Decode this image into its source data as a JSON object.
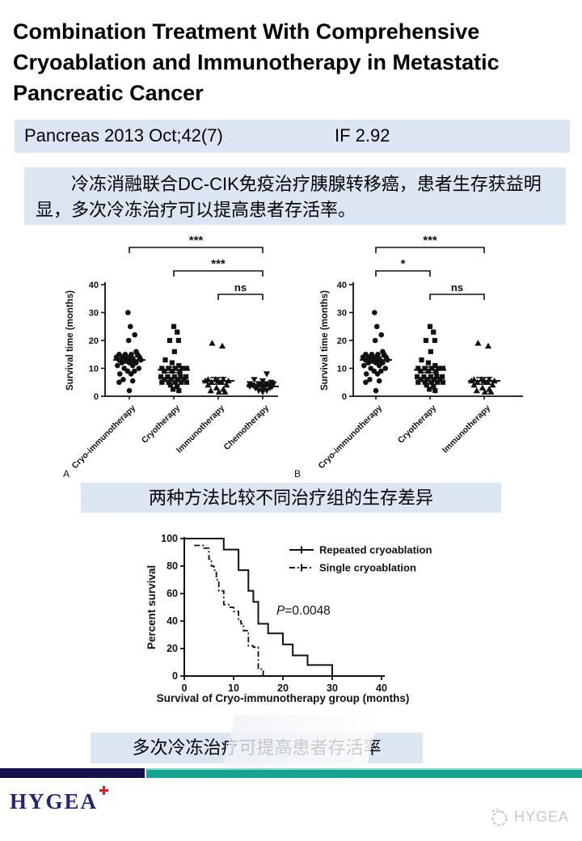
{
  "slide": {
    "title": "Combination Treatment With Comprehensive Cryoablation and Immunotherapy in Metastatic Pancreatic Cancer",
    "journal": "Pancreas 2013 Oct;42(7)",
    "impact_factor": "IF 2.92",
    "summary": "冷冻消融联合DC-CIK免疫治疗胰腺转移癌，患者生存获益明显，多次冷冻治疗可以提高患者存活率。",
    "caption_scatter": "两种方法比较不同治疗组的生存差异",
    "caption_km": "多次冷冻治疗可提高患者存活率",
    "logo_text": "HYGEA",
    "watermark_text": "HYGEA"
  },
  "colors": {
    "box_bg": "#dce6f2",
    "footer_navy": "#14104f",
    "footer_teal": "#17a392",
    "logo_navy": "#23237d",
    "logo_red": "#e01b24",
    "watermark_gray": "#c9c9c9",
    "ink": "#111111"
  },
  "chart_data": [
    {
      "type": "scatter",
      "panel_label": "A",
      "ylabel": "Survival time (months)",
      "ylim": [
        0,
        40
      ],
      "yticks": [
        0,
        10,
        20,
        30,
        40
      ],
      "comparisons": [
        {
          "from": 0,
          "to": 3,
          "label": "***"
        },
        {
          "from": 1,
          "to": 3,
          "label": "***"
        },
        {
          "from": 2,
          "to": 3,
          "label": "ns"
        }
      ],
      "groups": [
        {
          "label": "Cryo-immunotherapy",
          "marker": "circle",
          "mean": 13,
          "sem": 1.1,
          "points": [
            [
              -0.04,
              30
            ],
            [
              0.03,
              25
            ],
            [
              0.16,
              22
            ],
            [
              -0.02,
              20
            ],
            [
              0.2,
              16
            ],
            [
              -0.3,
              15
            ],
            [
              -0.12,
              15
            ],
            [
              0.06,
              15
            ],
            [
              0.24,
              15
            ],
            [
              -0.38,
              14
            ],
            [
              -0.2,
              14
            ],
            [
              0.0,
              14
            ],
            [
              0.3,
              14
            ],
            [
              -0.3,
              13
            ],
            [
              -0.1,
              13
            ],
            [
              0.12,
              13
            ],
            [
              0.34,
              13
            ],
            [
              -0.22,
              12
            ],
            [
              0.0,
              12
            ],
            [
              0.2,
              12
            ],
            [
              -0.35,
              11
            ],
            [
              0.1,
              11
            ],
            [
              -0.15,
              10
            ],
            [
              0.28,
              10
            ],
            [
              -0.05,
              9
            ],
            [
              0.15,
              9
            ],
            [
              -0.28,
              8
            ],
            [
              0.05,
              8
            ],
            [
              -0.18,
              6
            ],
            [
              0.1,
              5.5
            ],
            [
              -0.3,
              5
            ],
            [
              0.0,
              2
            ]
          ]
        },
        {
          "label": "Cryotherapy",
          "marker": "square",
          "mean": 9.5,
          "sem": 1.0,
          "points": [
            [
              0.0,
              25
            ],
            [
              0.1,
              23
            ],
            [
              -0.12,
              20
            ],
            [
              0.14,
              20
            ],
            [
              0.02,
              16
            ],
            [
              -0.25,
              13
            ],
            [
              -0.05,
              12
            ],
            [
              0.15,
              11
            ],
            [
              -0.35,
              10
            ],
            [
              -0.15,
              10
            ],
            [
              0.05,
              10
            ],
            [
              0.25,
              10
            ],
            [
              0.38,
              10
            ],
            [
              -0.28,
              9
            ],
            [
              -0.05,
              9
            ],
            [
              0.18,
              8.5
            ],
            [
              -0.38,
              7
            ],
            [
              -0.18,
              7
            ],
            [
              0.02,
              7
            ],
            [
              0.2,
              7
            ],
            [
              0.36,
              7
            ],
            [
              -0.28,
              6
            ],
            [
              -0.08,
              6
            ],
            [
              0.12,
              6
            ],
            [
              0.3,
              6
            ],
            [
              -0.35,
              5
            ],
            [
              -0.15,
              5
            ],
            [
              0.05,
              5
            ],
            [
              0.22,
              5
            ],
            [
              0.38,
              5
            ],
            [
              -0.1,
              4
            ],
            [
              0.1,
              3.5
            ],
            [
              -0.02,
              2.5
            ],
            [
              0.15,
              2
            ]
          ]
        },
        {
          "label": "Immunotherapy",
          "marker": "triangle-up",
          "mean": 5.5,
          "sem": 1.2,
          "points": [
            [
              -0.18,
              19
            ],
            [
              0.12,
              18
            ],
            [
              -0.3,
              6
            ],
            [
              -0.08,
              6
            ],
            [
              0.15,
              6
            ],
            [
              -0.38,
              5.5
            ],
            [
              0.0,
              5.5
            ],
            [
              0.3,
              5.5
            ],
            [
              -0.2,
              5
            ],
            [
              0.1,
              5
            ],
            [
              -0.3,
              4
            ],
            [
              0.25,
              4
            ],
            [
              -0.05,
              3
            ],
            [
              0.15,
              2.5
            ],
            [
              -0.22,
              2
            ],
            [
              0.02,
              1.5
            ],
            [
              0.2,
              1.5
            ]
          ]
        },
        {
          "label": "Chemotherapy",
          "marker": "triangle-down",
          "mean": 3.5,
          "sem": 0.7,
          "points": [
            [
              0.12,
              8
            ],
            [
              -0.25,
              6
            ],
            [
              0.0,
              5.5
            ],
            [
              0.25,
              5
            ],
            [
              -0.38,
              4.5
            ],
            [
              -0.12,
              4.5
            ],
            [
              0.1,
              4.5
            ],
            [
              0.32,
              4.5
            ],
            [
              -0.3,
              4
            ],
            [
              -0.05,
              4
            ],
            [
              0.18,
              4
            ],
            [
              -0.38,
              3.5
            ],
            [
              -0.15,
              3.5
            ],
            [
              0.05,
              3.5
            ],
            [
              0.28,
              3.5
            ],
            [
              -0.22,
              3
            ],
            [
              0.0,
              3
            ],
            [
              0.22,
              3
            ],
            [
              -0.12,
              2
            ],
            [
              0.12,
              2
            ],
            [
              0.0,
              1.5
            ]
          ]
        }
      ]
    },
    {
      "type": "scatter",
      "panel_label": "B",
      "ylabel": "Survival time (months)",
      "ylim": [
        0,
        40
      ],
      "yticks": [
        0,
        10,
        20,
        30,
        40
      ],
      "comparisons": [
        {
          "from": 0,
          "to": 2,
          "label": "***"
        },
        {
          "from": 0,
          "to": 1,
          "label": "*"
        },
        {
          "from": 1,
          "to": 2,
          "label": "ns"
        }
      ],
      "groups": [
        {
          "label": "Cryo-immunotherapy",
          "marker": "circle",
          "mean": 13,
          "sem": 1.1,
          "points": [
            [
              -0.04,
              30
            ],
            [
              0.03,
              25
            ],
            [
              0.16,
              22
            ],
            [
              -0.02,
              20
            ],
            [
              0.2,
              16
            ],
            [
              -0.3,
              15
            ],
            [
              -0.12,
              15
            ],
            [
              0.06,
              15
            ],
            [
              0.24,
              15
            ],
            [
              -0.38,
              14
            ],
            [
              -0.2,
              14
            ],
            [
              0.0,
              14
            ],
            [
              0.3,
              14
            ],
            [
              -0.3,
              13
            ],
            [
              -0.1,
              13
            ],
            [
              0.12,
              13
            ],
            [
              0.34,
              13
            ],
            [
              -0.22,
              12
            ],
            [
              0.0,
              12
            ],
            [
              0.2,
              12
            ],
            [
              -0.35,
              11
            ],
            [
              0.1,
              11
            ],
            [
              -0.15,
              10
            ],
            [
              0.28,
              10
            ],
            [
              -0.05,
              9
            ],
            [
              0.15,
              9
            ],
            [
              -0.28,
              8
            ],
            [
              0.05,
              8
            ],
            [
              -0.18,
              6
            ],
            [
              0.1,
              5.5
            ],
            [
              -0.3,
              5
            ],
            [
              0.0,
              2
            ]
          ]
        },
        {
          "label": "Cryotherapy",
          "marker": "square",
          "mean": 9.5,
          "sem": 1.0,
          "points": [
            [
              0.0,
              25
            ],
            [
              0.1,
              23
            ],
            [
              -0.12,
              20
            ],
            [
              0.14,
              20
            ],
            [
              0.02,
              16
            ],
            [
              -0.25,
              13
            ],
            [
              -0.05,
              12
            ],
            [
              0.15,
              11
            ],
            [
              -0.35,
              10
            ],
            [
              -0.15,
              10
            ],
            [
              0.05,
              10
            ],
            [
              0.25,
              10
            ],
            [
              0.38,
              10
            ],
            [
              -0.28,
              9
            ],
            [
              -0.05,
              9
            ],
            [
              0.18,
              8.5
            ],
            [
              -0.38,
              7
            ],
            [
              -0.18,
              7
            ],
            [
              0.02,
              7
            ],
            [
              0.2,
              7
            ],
            [
              0.36,
              7
            ],
            [
              -0.28,
              6
            ],
            [
              -0.08,
              6
            ],
            [
              0.12,
              6
            ],
            [
              0.3,
              6
            ],
            [
              -0.35,
              5
            ],
            [
              -0.15,
              5
            ],
            [
              0.05,
              5
            ],
            [
              0.22,
              5
            ],
            [
              0.38,
              5
            ],
            [
              -0.1,
              4
            ],
            [
              0.1,
              3.5
            ],
            [
              -0.02,
              2.5
            ],
            [
              0.15,
              2
            ]
          ]
        },
        {
          "label": "Immunotherapy",
          "marker": "triangle-up",
          "mean": 5.5,
          "sem": 1.2,
          "points": [
            [
              -0.18,
              19
            ],
            [
              0.12,
              18
            ],
            [
              -0.3,
              6
            ],
            [
              -0.08,
              6
            ],
            [
              0.15,
              6
            ],
            [
              -0.38,
              5.5
            ],
            [
              0.0,
              5.5
            ],
            [
              0.3,
              5.5
            ],
            [
              -0.2,
              5
            ],
            [
              0.1,
              5
            ],
            [
              -0.3,
              4
            ],
            [
              0.25,
              4
            ],
            [
              -0.05,
              3
            ],
            [
              0.15,
              2.5
            ],
            [
              -0.22,
              2
            ],
            [
              0.02,
              1.5
            ],
            [
              0.2,
              1.5
            ]
          ]
        }
      ]
    },
    {
      "type": "step",
      "title": "",
      "xlabel": "Survival of Cryo-immunotherapy group (months)",
      "ylabel": "Percent survival",
      "xlim": [
        0,
        40
      ],
      "ylim": [
        0,
        100
      ],
      "xticks": [
        0,
        10,
        20,
        30,
        40
      ],
      "yticks": [
        0,
        20,
        40,
        60,
        80,
        100
      ],
      "annotation": "P=0.0048",
      "legend_position": "top-right",
      "series": [
        {
          "name": "Repeated cryoablation",
          "style": "solid",
          "points": [
            [
              0,
              100
            ],
            [
              8,
              100
            ],
            [
              8,
              92
            ],
            [
              11,
              92
            ],
            [
              11,
              77
            ],
            [
              13,
              77
            ],
            [
              13,
              62
            ],
            [
              14,
              62
            ],
            [
              14,
              54
            ],
            [
              15,
              54
            ],
            [
              15,
              38
            ],
            [
              17,
              38
            ],
            [
              17,
              31
            ],
            [
              20,
              31
            ],
            [
              20,
              23
            ],
            [
              22,
              23
            ],
            [
              22,
              15
            ],
            [
              25,
              15
            ],
            [
              25,
              8
            ],
            [
              30,
              8
            ],
            [
              30,
              0
            ]
          ]
        },
        {
          "name": "Single cryoablation",
          "style": "dash-dot",
          "points": [
            [
              2,
              95
            ],
            [
              4,
              95
            ],
            [
              4,
              93
            ],
            [
              5,
              93
            ],
            [
              5,
              85
            ],
            [
              5.5,
              85
            ],
            [
              5.5,
              80
            ],
            [
              6,
              80
            ],
            [
              6,
              77
            ],
            [
              6.5,
              77
            ],
            [
              6.5,
              70
            ],
            [
              7,
              70
            ],
            [
              7,
              62
            ],
            [
              8,
              62
            ],
            [
              8,
              52
            ],
            [
              9,
              52
            ],
            [
              9,
              50
            ],
            [
              10,
              50
            ],
            [
              10,
              47
            ],
            [
              11,
              47
            ],
            [
              11,
              40
            ],
            [
              11.5,
              40
            ],
            [
              11.5,
              38
            ],
            [
              12,
              38
            ],
            [
              12,
              33
            ],
            [
              13,
              33
            ],
            [
              13,
              22
            ],
            [
              14,
              22
            ],
            [
              14,
              21
            ],
            [
              15,
              21
            ],
            [
              15,
              5
            ],
            [
              16,
              5
            ],
            [
              16,
              0
            ]
          ]
        }
      ]
    }
  ]
}
